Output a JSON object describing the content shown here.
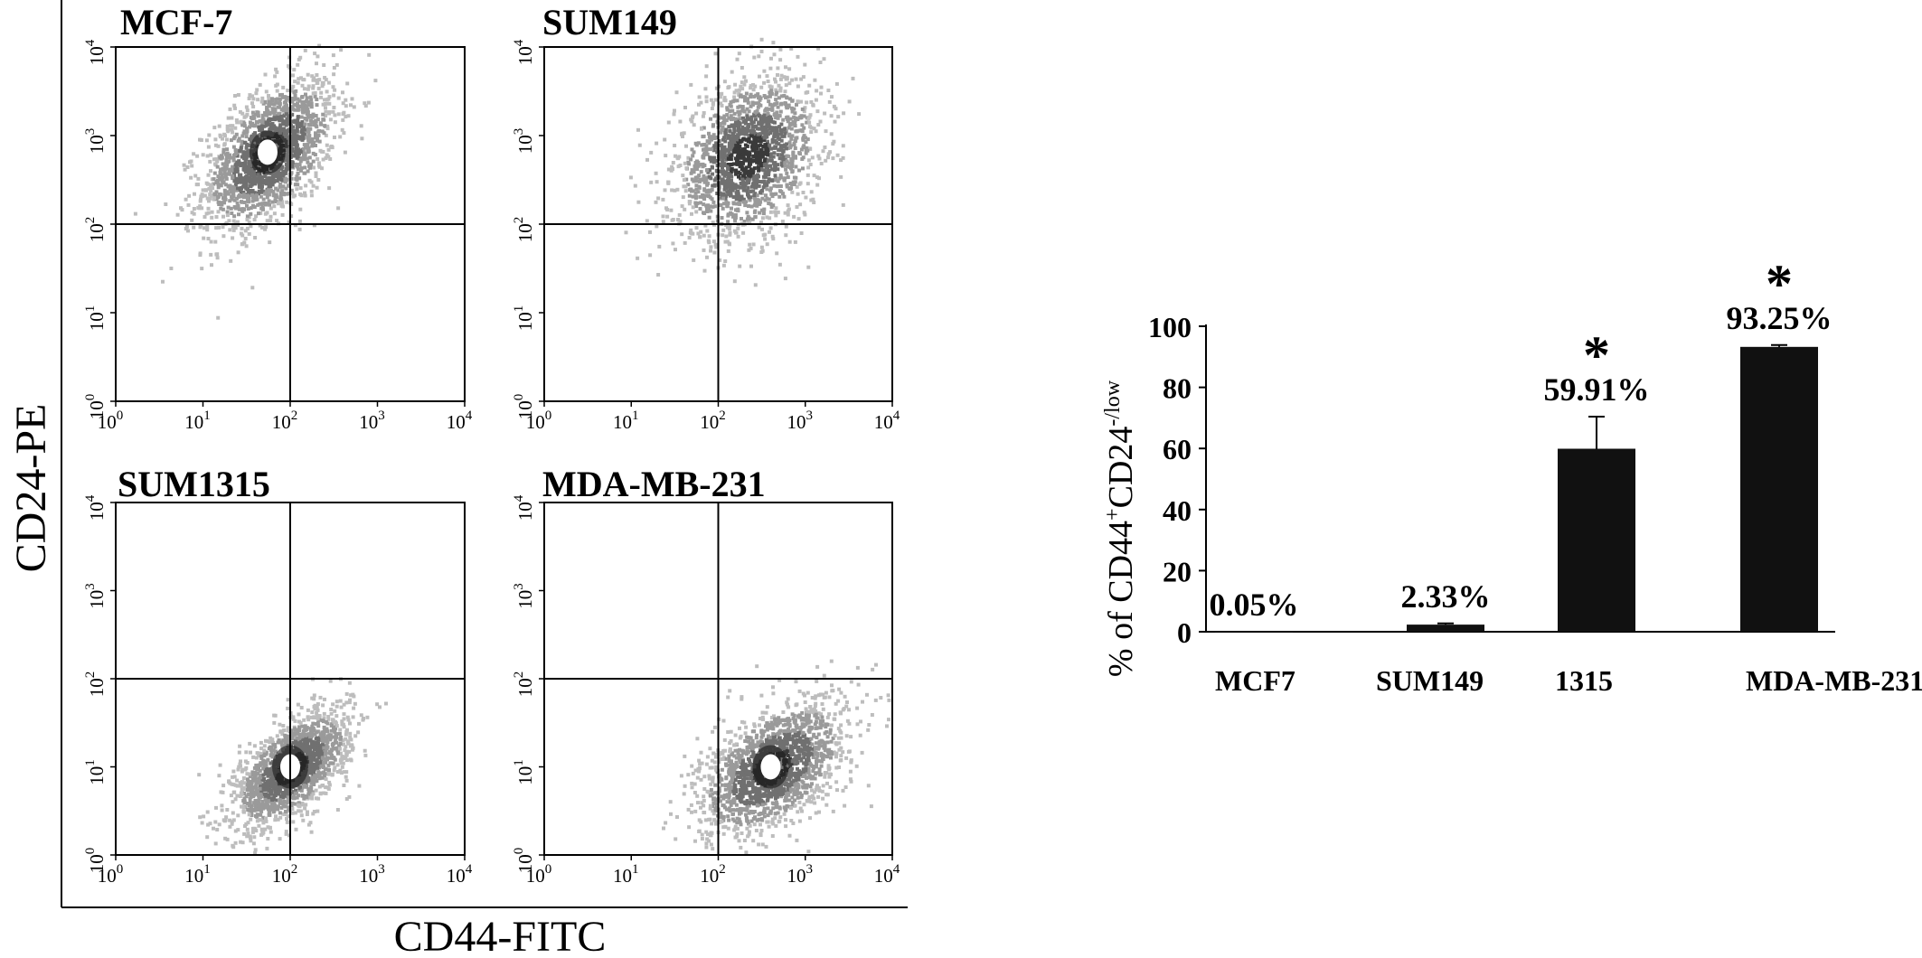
{
  "figure": {
    "left_ylabel": "CD24-PE",
    "left_xlabel": "CD44-FITC"
  },
  "chart_data": [
    {
      "type": "scatter",
      "title": "MCF-7",
      "xscale": "log",
      "yscale": "log",
      "xlim": [
        1,
        10000
      ],
      "ylim": [
        1,
        10000
      ],
      "gate": {
        "x": 100,
        "y": 100
      },
      "population": {
        "center": [
          55,
          650
        ],
        "log_spread": [
          0.38,
          0.42
        ],
        "tilt": 0.5,
        "dense_core": true
      },
      "x_ticks": [
        {
          "base": "10",
          "exp": "0"
        },
        {
          "base": "10",
          "exp": "1"
        },
        {
          "base": "10",
          "exp": "2"
        },
        {
          "base": "10",
          "exp": "3"
        },
        {
          "base": "10",
          "exp": "4"
        }
      ],
      "y_ticks": [
        {
          "base": "10",
          "exp": "0"
        },
        {
          "base": "10",
          "exp": "1"
        },
        {
          "base": "10",
          "exp": "2"
        },
        {
          "base": "10",
          "exp": "3"
        },
        {
          "base": "10",
          "exp": "4"
        }
      ]
    },
    {
      "type": "scatter",
      "title": "SUM149",
      "xscale": "log",
      "yscale": "log",
      "xlim": [
        1,
        10000
      ],
      "ylim": [
        1,
        10000
      ],
      "gate": {
        "x": 100,
        "y": 100
      },
      "population": {
        "center": [
          210,
          600
        ],
        "log_spread": [
          0.42,
          0.45
        ],
        "tilt": 0.3,
        "dense_core": false
      },
      "x_ticks": [
        {
          "base": "10",
          "exp": "0"
        },
        {
          "base": "10",
          "exp": "1"
        },
        {
          "base": "10",
          "exp": "2"
        },
        {
          "base": "10",
          "exp": "3"
        },
        {
          "base": "10",
          "exp": "4"
        }
      ],
      "y_ticks": [
        {
          "base": "10",
          "exp": "0"
        },
        {
          "base": "10",
          "exp": "1"
        },
        {
          "base": "10",
          "exp": "2"
        },
        {
          "base": "10",
          "exp": "3"
        },
        {
          "base": "10",
          "exp": "4"
        }
      ]
    },
    {
      "type": "scatter",
      "title": "SUM1315",
      "xscale": "log",
      "yscale": "log",
      "xlim": [
        1,
        10000
      ],
      "ylim": [
        1,
        10000
      ],
      "gate": {
        "x": 100,
        "y": 100
      },
      "population": {
        "center": [
          100,
          10
        ],
        "log_spread": [
          0.33,
          0.33
        ],
        "tilt": 0.6,
        "dense_core": true
      },
      "x_ticks": [
        {
          "base": "10",
          "exp": "0"
        },
        {
          "base": "10",
          "exp": "1"
        },
        {
          "base": "10",
          "exp": "2"
        },
        {
          "base": "10",
          "exp": "3"
        },
        {
          "base": "10",
          "exp": "4"
        }
      ],
      "y_ticks": [
        {
          "base": "10",
          "exp": "0"
        },
        {
          "base": "10",
          "exp": "1"
        },
        {
          "base": "10",
          "exp": "2"
        },
        {
          "base": "10",
          "exp": "3"
        },
        {
          "base": "10",
          "exp": "4"
        }
      ]
    },
    {
      "type": "scatter",
      "title": "MDA-MB-231",
      "xscale": "log",
      "yscale": "log",
      "xlim": [
        1,
        10000
      ],
      "ylim": [
        1,
        10000
      ],
      "gate": {
        "x": 100,
        "y": 100
      },
      "population": {
        "center": [
          400,
          10
        ],
        "log_spread": [
          0.42,
          0.38
        ],
        "tilt": 0.5,
        "dense_core": true
      },
      "x_ticks": [
        {
          "base": "10",
          "exp": "0"
        },
        {
          "base": "10",
          "exp": "1"
        },
        {
          "base": "10",
          "exp": "2"
        },
        {
          "base": "10",
          "exp": "3"
        },
        {
          "base": "10",
          "exp": "4"
        }
      ],
      "y_ticks": [
        {
          "base": "10",
          "exp": "0"
        },
        {
          "base": "10",
          "exp": "1"
        },
        {
          "base": "10",
          "exp": "2"
        },
        {
          "base": "10",
          "exp": "3"
        },
        {
          "base": "10",
          "exp": "4"
        }
      ]
    },
    {
      "type": "bar",
      "categories": [
        "MCF7",
        "SUM149",
        "1315",
        "MDA-MB-231"
      ],
      "values": [
        0.05,
        2.33,
        59.91,
        93.25
      ],
      "errors": [
        0,
        0.4,
        10.5,
        0.6
      ],
      "value_labels": [
        "0.05%",
        "2.33%",
        "59.91%",
        "93.25%"
      ],
      "significance": [
        "",
        "",
        "*",
        "*"
      ],
      "ylabel": {
        "prefix": "% of CD44",
        "sup1": "+",
        "mid": "CD24",
        "sup2": "-/low"
      },
      "ylim": [
        0,
        100
      ],
      "yticks": [
        "0",
        "20",
        "40",
        "60",
        "80",
        "100"
      ],
      "color": "#111111"
    }
  ]
}
